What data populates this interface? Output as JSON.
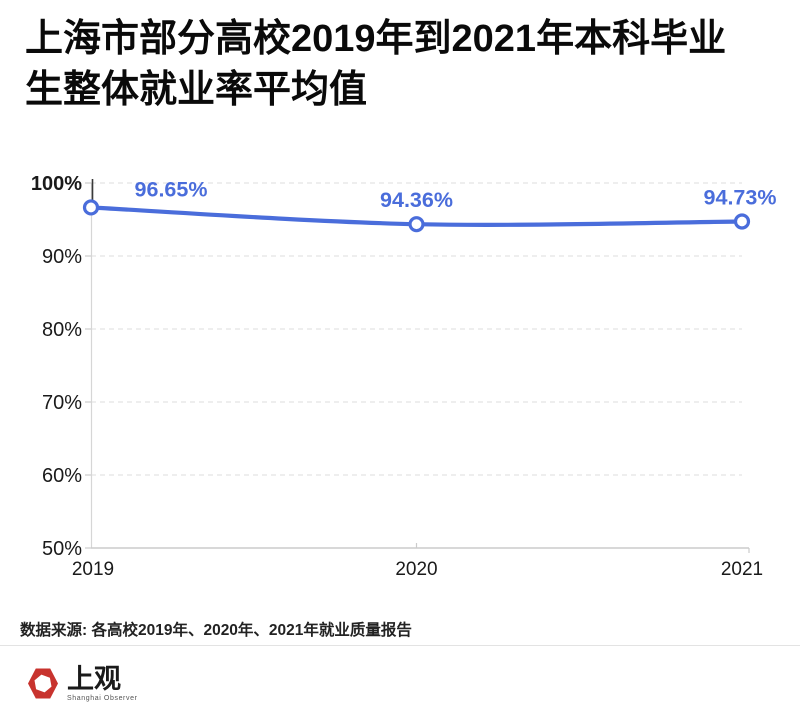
{
  "title": "上海市部分高校2019年到2021年本科毕业\n生整体就业率平均值",
  "chart_data": {
    "type": "line",
    "categories": [
      "2019",
      "2020",
      "2021"
    ],
    "series": [
      {
        "name": "本科毕业生整体就业率平均值",
        "values": [
          96.65,
          94.36,
          94.73
        ]
      }
    ],
    "point_labels": [
      "96.65%",
      "94.36%",
      "94.73%"
    ],
    "ylim": [
      50,
      100
    ],
    "yticks": [
      {
        "value": 50,
        "label": "50%",
        "bold": false
      },
      {
        "value": 60,
        "label": "60%",
        "bold": false
      },
      {
        "value": 70,
        "label": "70%",
        "bold": false
      },
      {
        "value": 80,
        "label": "80%",
        "bold": false
      },
      {
        "value": 90,
        "label": "90%",
        "bold": false
      },
      {
        "value": 100,
        "label": "100%",
        "bold": true
      }
    ],
    "grid": "horizontal-dashed",
    "legend": "none",
    "colors": {
      "line": "#4A6DDB",
      "point_fill": "#ffffff",
      "point_stroke": "#4A6DDB",
      "data_label": "#4A6DDB",
      "gridline": "#e4e4e4",
      "axis": "#cbcbcb",
      "axis_top_tick": "#3a3a3a",
      "tick_label": "#1a1a1a"
    }
  },
  "source": {
    "text": "数据来源: 各高校2019年、2020年、2021年就业质量报告"
  },
  "logo": {
    "name": "上观",
    "subtitle": "Shanghai Observer",
    "hexagon_color": "#C8332E"
  }
}
